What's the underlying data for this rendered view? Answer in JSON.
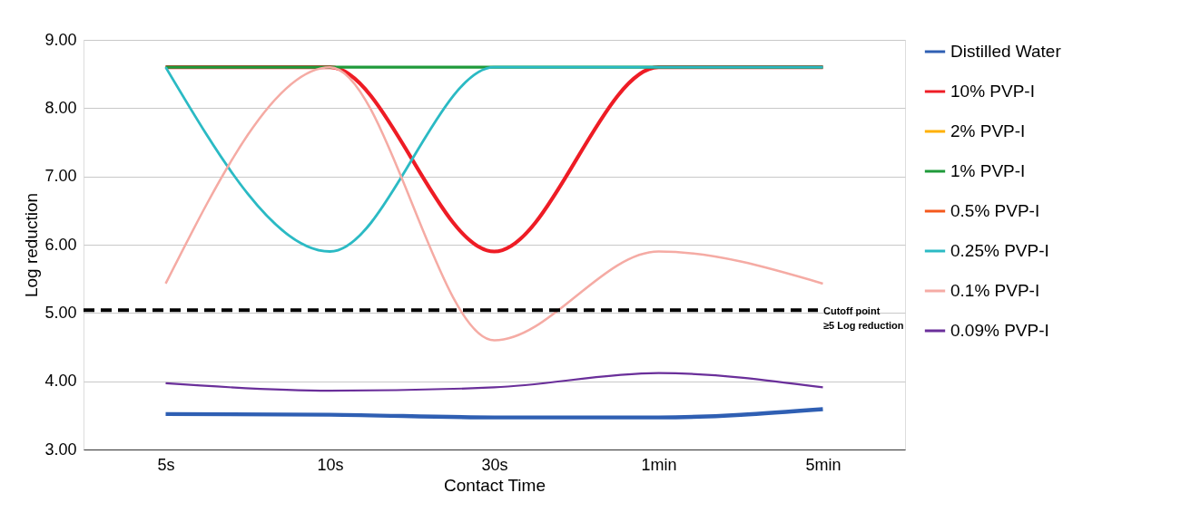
{
  "chart_data": {
    "type": "line",
    "xlabel": "Contact Time",
    "ylabel": "Log reduction",
    "categories": [
      "5s",
      "10s",
      "30s",
      "1min",
      "5min"
    ],
    "series": [
      {
        "name": "Distilled Water",
        "color": "#2f5fb3",
        "values": [
          3.52,
          3.51,
          3.47,
          3.47,
          3.59
        ]
      },
      {
        "name": "10% PVP-I",
        "color": "#ee1c25",
        "values": [
          8.6,
          8.6,
          5.9,
          8.6,
          8.6
        ]
      },
      {
        "name": "2% PVP-I",
        "color": "#ffb000",
        "values": [
          null,
          null,
          null,
          null,
          null
        ]
      },
      {
        "name": "1% PVP-I",
        "color": "#1f9a3a",
        "values": [
          8.6,
          8.6,
          8.6,
          8.6,
          8.6
        ]
      },
      {
        "name": "0.5% PVP-I",
        "color": "#f4581c",
        "values": [
          null,
          null,
          null,
          null,
          null
        ]
      },
      {
        "name": "0.25% PVP-I",
        "color": "#2bbac4",
        "values": [
          8.6,
          5.9,
          8.6,
          8.6,
          8.6
        ]
      },
      {
        "name": "0.1% PVP-I",
        "color": "#f5aba4",
        "values": [
          5.43,
          8.6,
          4.6,
          5.9,
          5.43
        ]
      },
      {
        "name": "0.09% PVP-I",
        "color": "#6a2f9a",
        "values": [
          3.97,
          3.86,
          3.91,
          4.12,
          3.91
        ]
      }
    ],
    "ylim": [
      3,
      9
    ],
    "yticks": [
      {
        "value": 3,
        "label": "3.00"
      },
      {
        "value": 4,
        "label": "4.00"
      },
      {
        "value": 5,
        "label": "5.00"
      },
      {
        "value": 6,
        "label": "6.00"
      },
      {
        "value": 7,
        "label": "7.00"
      },
      {
        "value": 8,
        "label": "8.00"
      },
      {
        "value": 9,
        "label": "9.00"
      }
    ],
    "ref_lines": [
      {
        "axis": "y",
        "value": 5.04,
        "label": "Cutoff point\n≥5 Log reduction",
        "color": "#000000",
        "line_style": "dashed"
      }
    ],
    "grid": "y",
    "legend": "right",
    "marker": "none",
    "line_style": "solid"
  }
}
